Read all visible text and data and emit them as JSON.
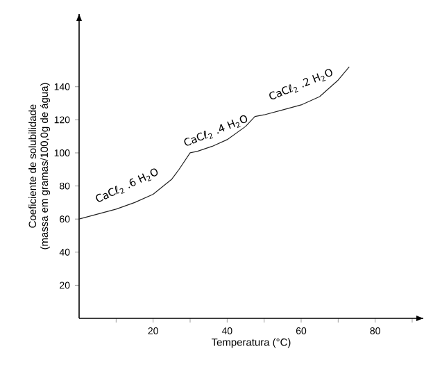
{
  "chart_data": {
    "type": "line",
    "xlabel": "Temperatura (°C)",
    "ylabel": "Coeficiente de solubilidade\n(massa em gramas/100,0g de água)",
    "x": [
      0,
      5,
      10,
      15,
      20,
      25,
      27,
      30,
      32,
      36,
      40,
      45,
      47.5,
      50,
      55,
      60,
      65,
      70,
      73
    ],
    "values": [
      60,
      63,
      66,
      70,
      75,
      84,
      90,
      100,
      101,
      104,
      108,
      116,
      122,
      123,
      126,
      129,
      134,
      144,
      152
    ],
    "color": "#222222",
    "marker": "none",
    "line_style": "solid",
    "xlim": [
      0,
      93
    ],
    "ylim": [
      0,
      184
    ],
    "xticks": [
      {
        "value": 10,
        "label": null
      },
      20,
      {
        "value": 30,
        "label": null
      },
      40,
      {
        "value": 50,
        "label": null
      },
      60,
      {
        "value": 70,
        "label": null
      },
      80,
      {
        "value": 90,
        "label": null
      }
    ],
    "yticks": [
      20,
      40,
      60,
      80,
      100,
      120,
      140
    ],
    "annotations": [
      "CaCℓ$_{2}$ .6 H$_{2}$O",
      "CaCℓ$_{2}$ .4 H$_{2}$O",
      "CaCℓ$_{2}$ .2 H$_{2}$O"
    ]
  }
}
